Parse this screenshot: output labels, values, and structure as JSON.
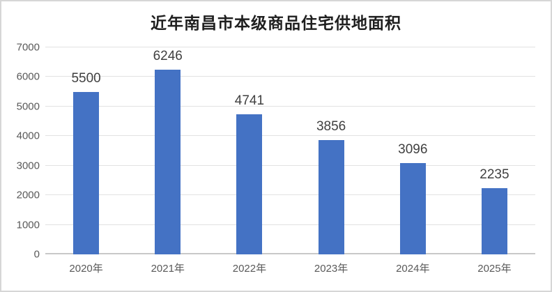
{
  "window": {
    "background": "#ffffff",
    "border_color": "#d6d6d6"
  },
  "chart_data": {
    "type": "bar",
    "title": "近年南昌市本级商品住宅供地面积",
    "categories": [
      "2020年",
      "2021年",
      "2022年",
      "2023年",
      "2024年",
      "2025年"
    ],
    "values": [
      5500,
      6246,
      4741,
      3856,
      3096,
      2235
    ],
    "data_labels": [
      "5500",
      "6246",
      "4741",
      "3856",
      "3096",
      "2235"
    ],
    "y_ticks": [
      0,
      1000,
      2000,
      3000,
      4000,
      5000,
      6000,
      7000
    ],
    "ylim": [
      0,
      7000
    ],
    "xlabel": "",
    "ylabel": "",
    "grid": true,
    "legend_position": "none",
    "bar_color": "#4472c4",
    "gridline_color": "#e2e2e2",
    "axis_line_color": "#c8c8c8",
    "tick_label_color": "#595959",
    "data_label_color": "#404040",
    "title_color": "#1f1f1f"
  }
}
